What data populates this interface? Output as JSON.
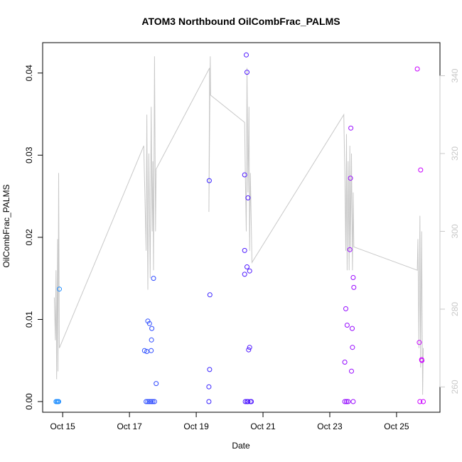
{
  "chart_data": {
    "type": "scatter",
    "title": "ATOM3 Northbound OilCombFrac_PALMS",
    "xlabel": "Date",
    "ylabel": "OilCombFrac_PALMS",
    "x_ticks": [
      "Oct 15",
      "Oct 17",
      "Oct 19",
      "Oct 21",
      "Oct 23",
      "Oct 25"
    ],
    "x_tick_days": [
      15,
      17,
      19,
      21,
      23,
      25
    ],
    "xlim_days": [
      14.4,
      26.3
    ],
    "y_ticks": [
      "0.00",
      "0.01",
      "0.02",
      "0.03",
      "0.04"
    ],
    "y_tick_values": [
      0.0,
      0.01,
      0.02,
      0.03,
      0.04
    ],
    "ylim": [
      -0.0013,
      0.0437
    ],
    "y2_ticks": [
      "260",
      "280",
      "300",
      "320",
      "340"
    ],
    "y2_tick_values": [
      260,
      280,
      300,
      320,
      340
    ],
    "y2lim": [
      253.5,
      348.5
    ],
    "grid": false,
    "colors": {
      "points_early": "#1e90ff",
      "points_mid": "#3b1cff",
      "points_late": "#cc00ff",
      "secondary_line": "#c8c8c8"
    },
    "series": [
      {
        "kind": "points",
        "points": [
          [
            14.8,
            0.0
          ],
          [
            14.83,
            0.0
          ],
          [
            14.86,
            0.0
          ],
          [
            14.88,
            0.0
          ],
          [
            14.9,
            0.0137
          ],
          [
            17.5,
            0.0
          ],
          [
            17.55,
            0.0
          ],
          [
            17.6,
            0.0
          ],
          [
            17.65,
            0.0
          ],
          [
            17.7,
            0.0
          ],
          [
            17.75,
            0.0
          ],
          [
            17.45,
            0.0062
          ],
          [
            17.52,
            0.0061
          ],
          [
            17.55,
            0.0098
          ],
          [
            17.6,
            0.0095
          ],
          [
            17.65,
            0.0062
          ],
          [
            17.67,
            0.0089
          ],
          [
            17.66,
            0.0075
          ],
          [
            17.72,
            0.015
          ],
          [
            17.8,
            0.0022
          ],
          [
            19.38,
            0.0
          ],
          [
            19.38,
            0.0018
          ],
          [
            19.4,
            0.0039
          ],
          [
            19.41,
            0.013
          ],
          [
            19.39,
            0.0269
          ],
          [
            20.45,
            0.0276
          ],
          [
            20.45,
            0.0184
          ],
          [
            20.45,
            0.0155
          ],
          [
            20.5,
            0.0422
          ],
          [
            20.52,
            0.0401
          ],
          [
            20.55,
            0.0248
          ],
          [
            20.52,
            0.0164
          ],
          [
            20.6,
            0.0159
          ],
          [
            20.57,
            0.0063
          ],
          [
            20.6,
            0.0066
          ],
          [
            20.47,
            0.0
          ],
          [
            20.52,
            0.0
          ],
          [
            20.55,
            0.0
          ],
          [
            20.62,
            0.0
          ],
          [
            20.65,
            0.0
          ],
          [
            23.45,
            0.0
          ],
          [
            23.5,
            0.0
          ],
          [
            23.55,
            0.0
          ],
          [
            23.7,
            0.0
          ],
          [
            23.45,
            0.0048
          ],
          [
            23.48,
            0.0113
          ],
          [
            23.52,
            0.0093
          ],
          [
            23.6,
            0.0185
          ],
          [
            23.62,
            0.0272
          ],
          [
            23.63,
            0.0333
          ],
          [
            23.67,
            0.0089
          ],
          [
            23.7,
            0.0151
          ],
          [
            23.72,
            0.0139
          ],
          [
            23.68,
            0.0066
          ],
          [
            23.65,
            0.0037
          ],
          [
            25.62,
            0.0405
          ],
          [
            25.72,
            0.0282
          ],
          [
            25.68,
            0.0072
          ],
          [
            25.75,
            0.0051
          ],
          [
            25.76,
            0.005
          ],
          [
            25.7,
            0.0
          ],
          [
            25.8,
            0.0
          ]
        ]
      },
      {
        "kind": "secondary_line",
        "axis": "right",
        "points": [
          [
            14.75,
            283
          ],
          [
            14.78,
            272
          ],
          [
            14.8,
            290
          ],
          [
            14.82,
            262
          ],
          [
            14.85,
            298
          ],
          [
            14.86,
            264
          ],
          [
            14.88,
            315
          ],
          [
            14.9,
            270
          ],
          [
            17.43,
            322
          ],
          [
            17.5,
            295
          ],
          [
            17.52,
            330
          ],
          [
            17.55,
            285
          ],
          [
            17.58,
            320
          ],
          [
            17.62,
            288
          ],
          [
            17.65,
            332
          ],
          [
            17.68,
            300
          ],
          [
            17.7,
            318
          ],
          [
            17.72,
            290
          ],
          [
            17.75,
            345
          ],
          [
            17.78,
            300
          ],
          [
            17.8,
            316
          ],
          [
            19.4,
            342
          ],
          [
            19.38,
            305
          ],
          [
            19.42,
            345
          ],
          [
            19.43,
            335
          ],
          [
            20.45,
            328
          ],
          [
            20.47,
            315
          ],
          [
            20.5,
            300
          ],
          [
            20.52,
            342
          ],
          [
            20.55,
            310
          ],
          [
            20.58,
            332
          ],
          [
            20.6,
            295
          ],
          [
            20.62,
            315
          ],
          [
            20.67,
            292
          ],
          [
            23.42,
            330
          ],
          [
            23.45,
            315
          ],
          [
            23.48,
            295
          ],
          [
            23.5,
            325
          ],
          [
            23.52,
            290
          ],
          [
            23.55,
            318
          ],
          [
            23.58,
            290
          ],
          [
            23.6,
            322
          ],
          [
            23.62,
            295
          ],
          [
            23.65,
            320
          ],
          [
            23.68,
            290
          ],
          [
            23.7,
            310
          ],
          [
            23.72,
            296
          ],
          [
            25.62,
            290
          ],
          [
            25.64,
            298
          ],
          [
            25.67,
            270
          ],
          [
            25.7,
            304
          ],
          [
            25.72,
            265
          ],
          [
            25.75,
            300
          ],
          [
            25.78,
            258
          ],
          [
            25.8,
            270
          ]
        ]
      }
    ]
  }
}
